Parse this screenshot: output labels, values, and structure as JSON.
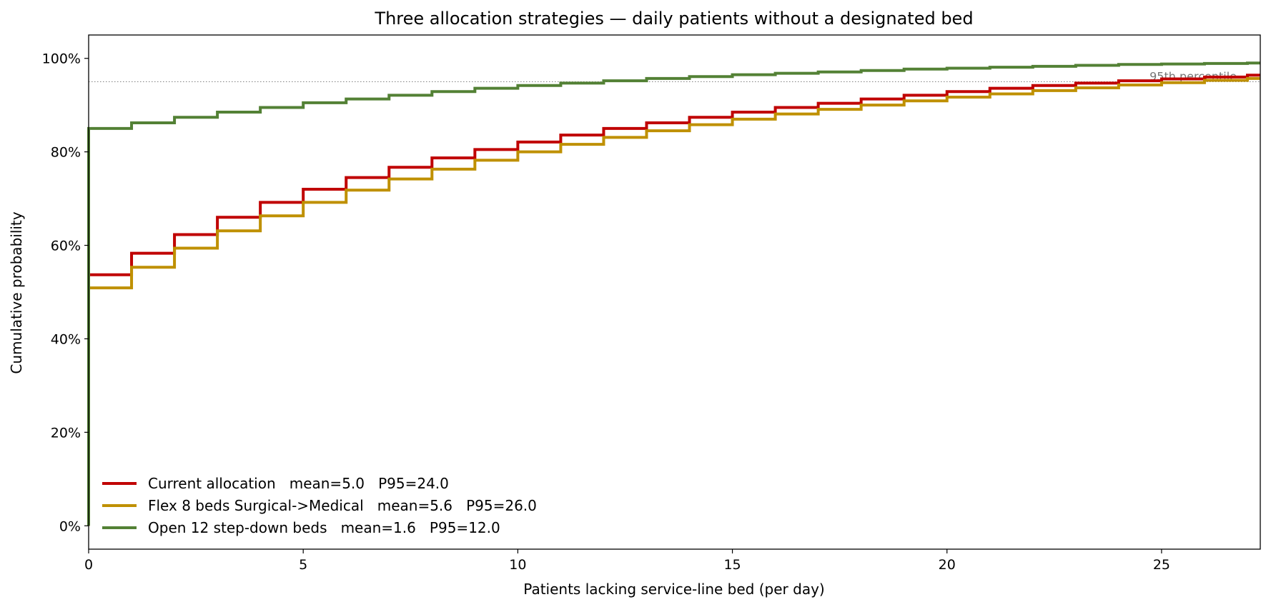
{
  "chart_data": {
    "type": "line",
    "step": true,
    "title": "Three allocation strategies — daily patients without a designated bed",
    "xlabel": "Patients lacking service-line bed (per day)",
    "ylabel": "Cumulative probability",
    "xlim": [
      0,
      27.3
    ],
    "ylim": [
      -0.05,
      1.05
    ],
    "x_ticks": [
      0,
      5,
      10,
      15,
      20,
      25
    ],
    "x_tick_labels": [
      "0",
      "5",
      "10",
      "15",
      "20",
      "25"
    ],
    "y_ticks": [
      0,
      0.2,
      0.4,
      0.6,
      0.8,
      1.0
    ],
    "y_tick_labels": [
      "0%",
      "20%",
      "40%",
      "60%",
      "80%",
      "100%"
    ],
    "grid": false,
    "legend_position": "lower-left",
    "reference_line": {
      "y": 0.95,
      "label": "95th percentile",
      "style": "dotted",
      "color": "#888888"
    },
    "x": [
      0,
      1,
      2,
      3,
      4,
      5,
      6,
      7,
      8,
      9,
      10,
      11,
      12,
      13,
      14,
      15,
      16,
      17,
      18,
      19,
      20,
      21,
      22,
      23,
      24,
      25,
      26,
      27
    ],
    "series": [
      {
        "name": "Current allocation   mean=5.0   P95=24.0",
        "color": "#c00000",
        "values": [
          0.537,
          0.583,
          0.623,
          0.66,
          0.692,
          0.72,
          0.745,
          0.767,
          0.787,
          0.805,
          0.821,
          0.836,
          0.85,
          0.862,
          0.874,
          0.885,
          0.895,
          0.904,
          0.913,
          0.921,
          0.929,
          0.936,
          0.942,
          0.947,
          0.952,
          0.956,
          0.96,
          0.964
        ]
      },
      {
        "name": "Flex 8 beds Surgical->Medical   mean=5.6   P95=26.0",
        "color": "#bf9000",
        "values": [
          0.509,
          0.553,
          0.594,
          0.631,
          0.663,
          0.692,
          0.718,
          0.742,
          0.763,
          0.782,
          0.8,
          0.816,
          0.831,
          0.845,
          0.858,
          0.87,
          0.881,
          0.891,
          0.9,
          0.909,
          0.917,
          0.924,
          0.931,
          0.937,
          0.943,
          0.948,
          0.953,
          0.957
        ]
      },
      {
        "name": "Open 12 step-down beds   mean=1.6   P95=12.0",
        "color": "#538135",
        "values": [
          0.85,
          0.862,
          0.874,
          0.885,
          0.895,
          0.905,
          0.913,
          0.921,
          0.929,
          0.936,
          0.942,
          0.947,
          0.952,
          0.957,
          0.961,
          0.965,
          0.968,
          0.971,
          0.974,
          0.977,
          0.979,
          0.981,
          0.983,
          0.985,
          0.987,
          0.988,
          0.989,
          0.99
        ]
      }
    ]
  }
}
